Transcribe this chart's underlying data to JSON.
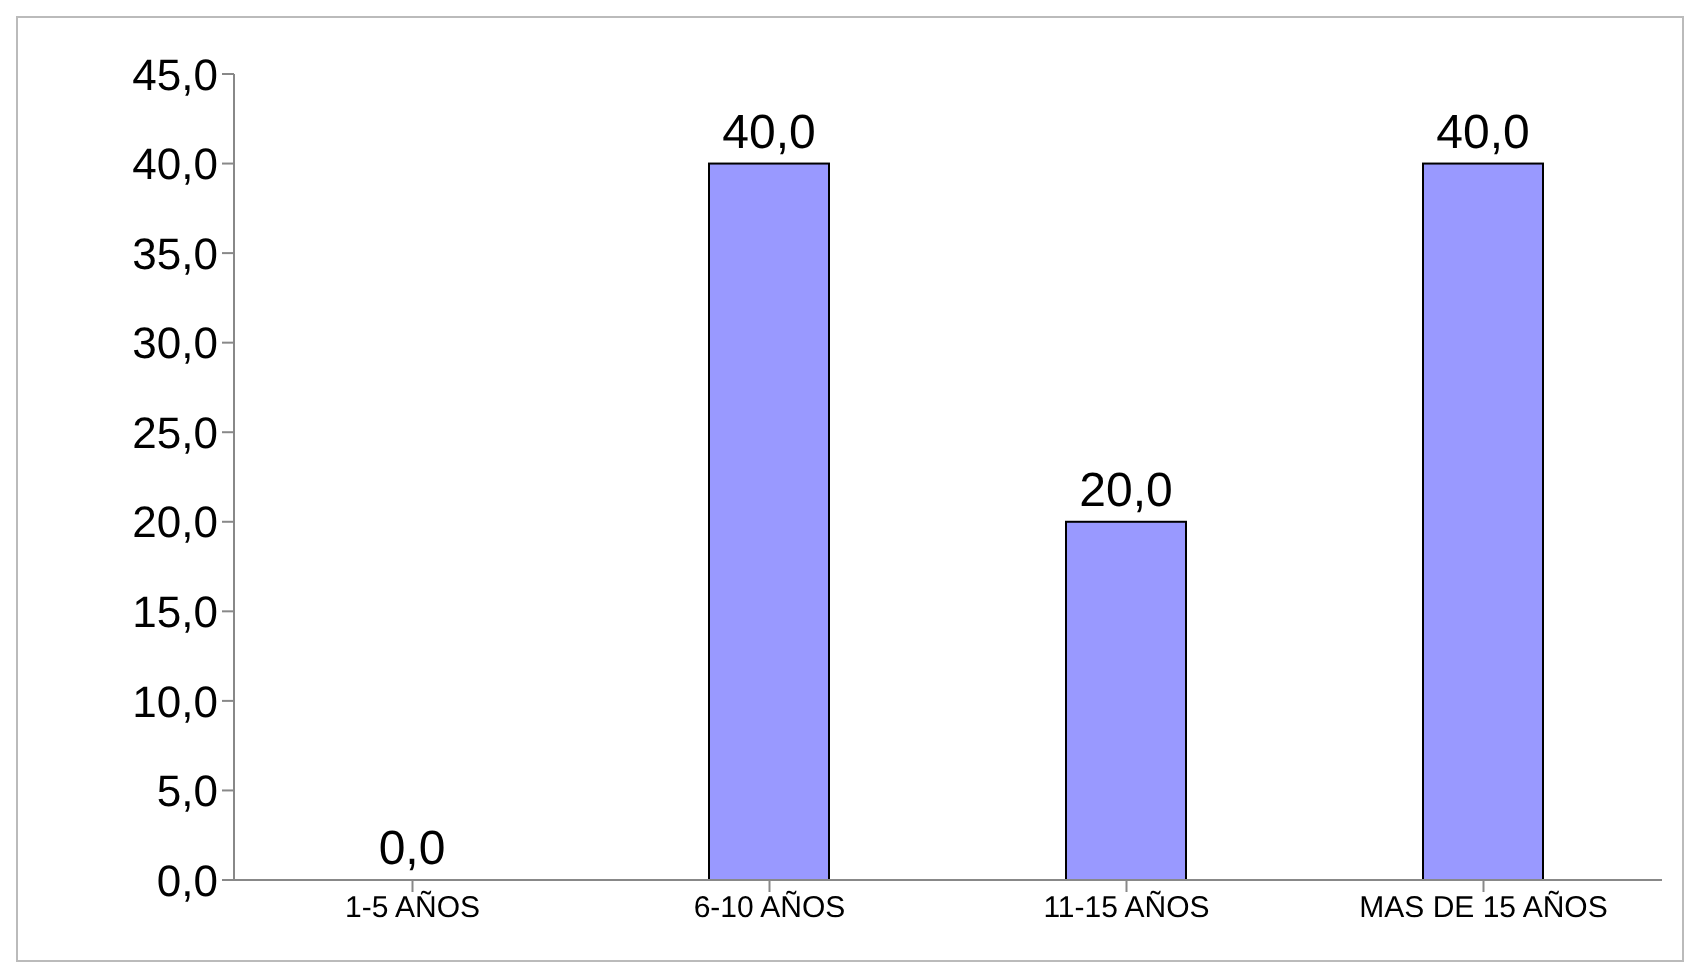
{
  "chart_data": {
    "type": "bar",
    "categories": [
      "1-5 AÑOS",
      "6-10 AÑOS",
      "11-15 AÑOS",
      "MAS DE 15 AÑOS"
    ],
    "values": [
      0,
      40,
      20,
      40
    ],
    "value_labels": [
      "0,0",
      "40,0",
      "20,0",
      "40,0"
    ],
    "color": "#9999ff",
    "ylim": [
      0,
      45
    ],
    "yticks": [
      {
        "value": 0,
        "label": "0,0"
      },
      {
        "value": 5,
        "label": "5,0"
      },
      {
        "value": 10,
        "label": "10,0"
      },
      {
        "value": 15,
        "label": "15,0"
      },
      {
        "value": 20,
        "label": "20,0"
      },
      {
        "value": 25,
        "label": "25,0"
      },
      {
        "value": 30,
        "label": "30,0"
      },
      {
        "value": 35,
        "label": "35,0"
      },
      {
        "value": 40,
        "label": "40,0"
      },
      {
        "value": 45,
        "label": "45,0"
      }
    ],
    "grid": false,
    "legend": false
  }
}
